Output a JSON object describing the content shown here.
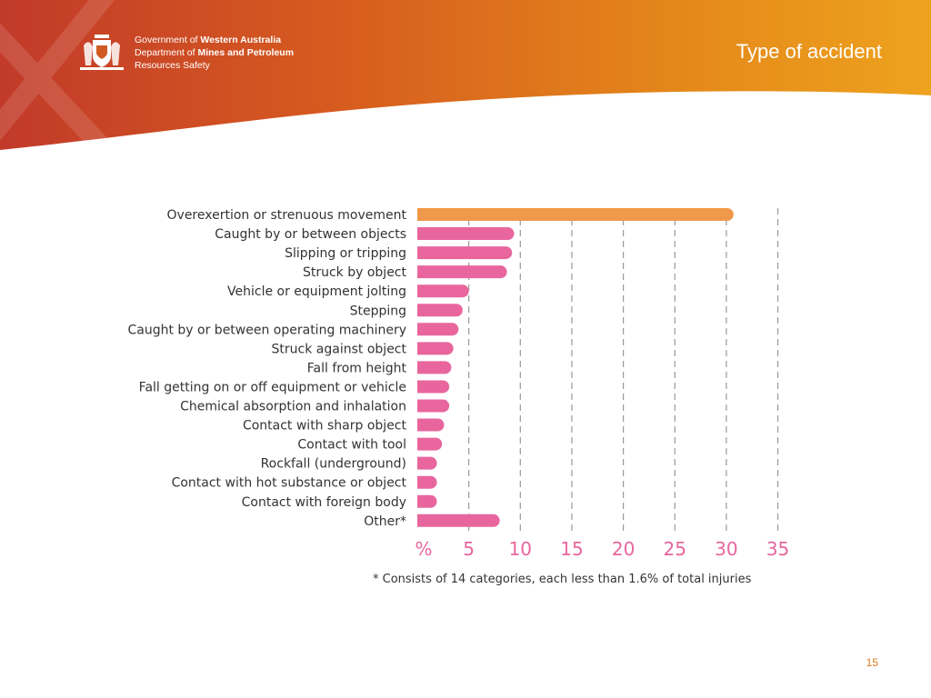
{
  "header": {
    "org_line1_prefix": "Government of ",
    "org_line1_bold": "Western Australia",
    "org_line2_prefix": "Department of ",
    "org_line2_bold": "Mines and Petroleum",
    "org_line3": "Resources Safety",
    "title": "Type of accident"
  },
  "colors": {
    "header_dark": "#c0392b",
    "header_mid": "#d9601f",
    "header_light": "#e99a1c",
    "highlight_bar": "#f0994a",
    "bar": "#e8669d",
    "tick_text": "#e8669d",
    "gridline": "#999999",
    "page_number": "#e07a1e"
  },
  "chart_data": {
    "type": "bar",
    "orientation": "horizontal",
    "categories": [
      "Overexertion or strenuous movement",
      "Caught by or between objects",
      "Slipping or tripping",
      "Struck by object",
      "Vehicle or equipment jolting",
      "Stepping",
      "Caught by or between operating machinery",
      "Struck against object",
      "Fall from height",
      "Fall getting on or off equipment or vehicle",
      "Chemical absorption and inhalation",
      "Contact with sharp object",
      "Contact with tool",
      "Rockfall (underground)",
      "Contact with hot substance or object",
      "Contact with foreign body",
      "Other*"
    ],
    "values": [
      30.7,
      9.4,
      9.2,
      8.7,
      5.0,
      4.4,
      4.0,
      3.5,
      3.3,
      3.1,
      3.1,
      2.6,
      2.4,
      1.9,
      1.9,
      1.9,
      8.0
    ],
    "highlight_index": 0,
    "xlim": [
      0,
      35
    ],
    "xticks": [
      5,
      10,
      15,
      20,
      25,
      30,
      35
    ],
    "xtick_labels": [
      "5",
      "10",
      "15",
      "20",
      "25",
      "30",
      "35"
    ],
    "unit_label": "%",
    "gridlines": "vertical dashed",
    "footnote": "* Consists of 14 categories, each less than 1.6% of total injuries"
  },
  "page_number": "15"
}
